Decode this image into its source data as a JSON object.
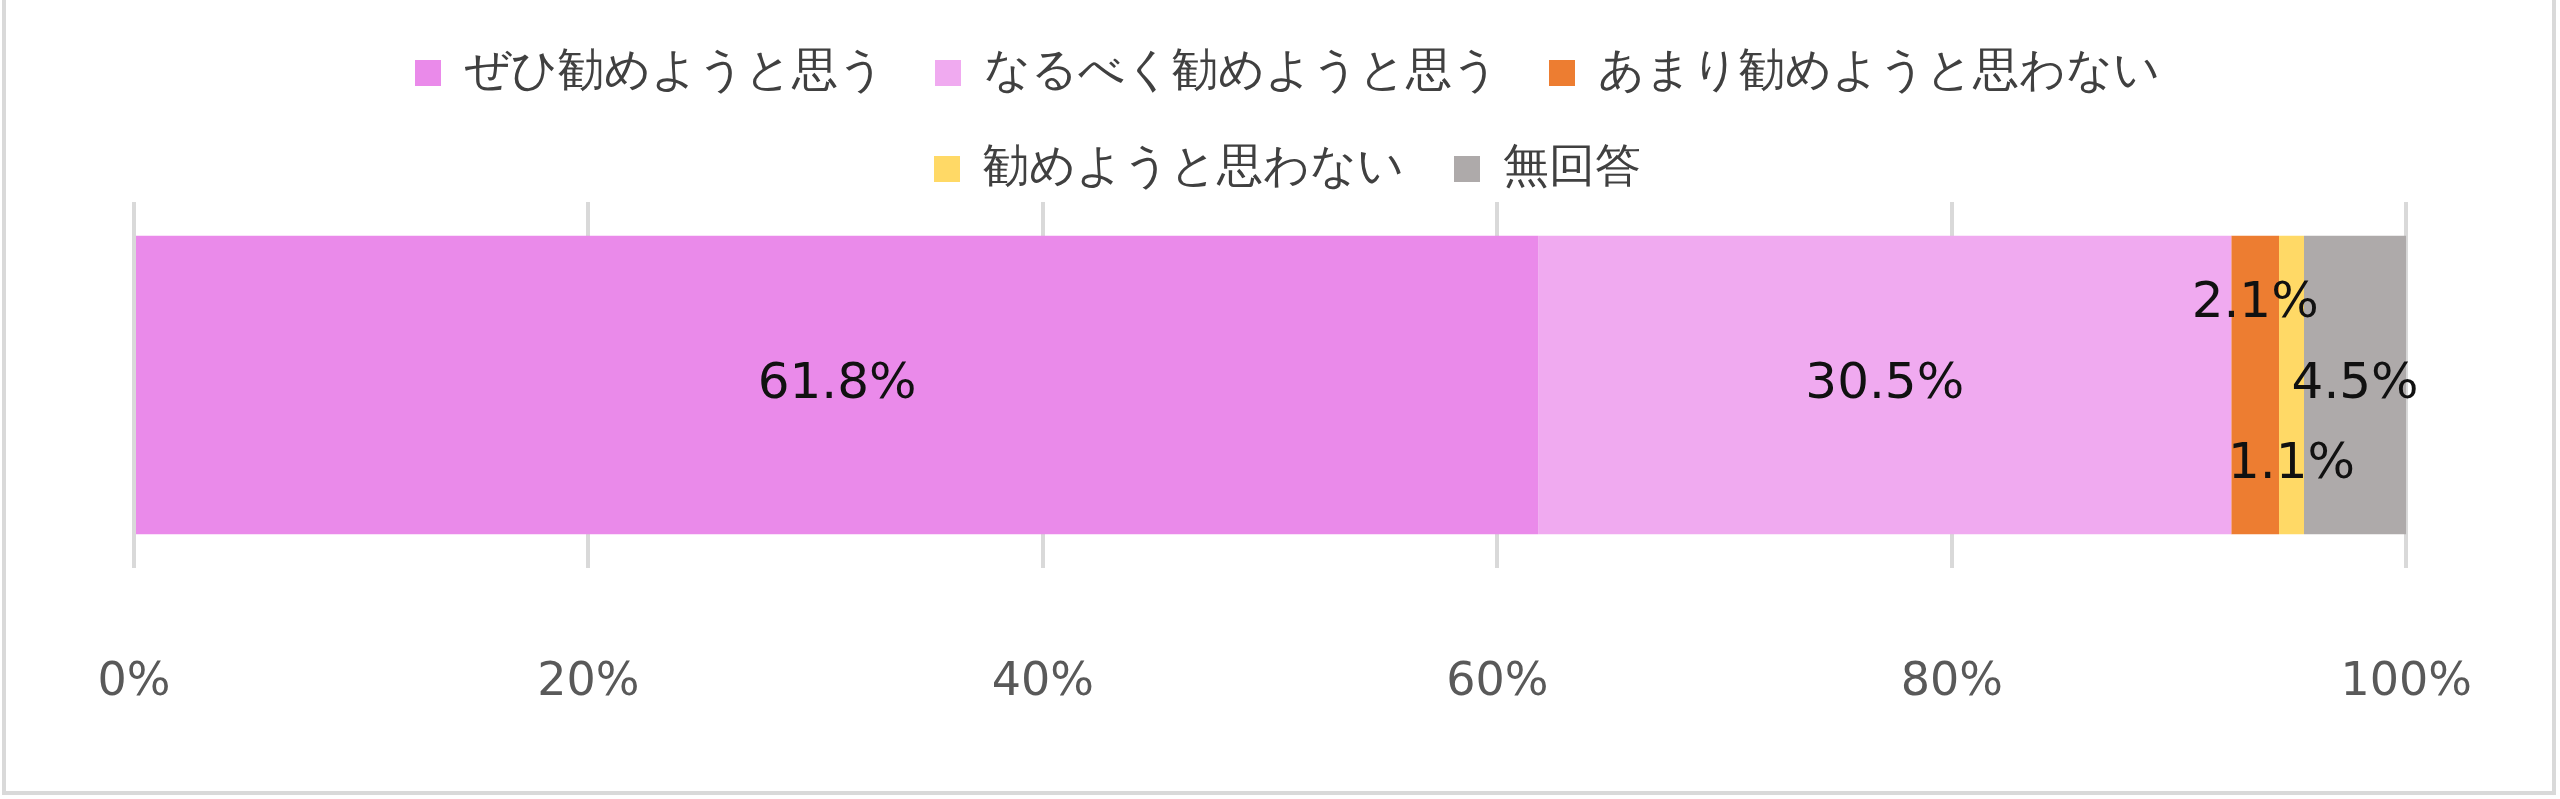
{
  "chart_data": {
    "type": "bar",
    "orientation": "horizontal",
    "stacked": true,
    "categories": [
      null
    ],
    "series": [
      {
        "name": "ぜひ勧めようと思う",
        "color": "#ea8aea",
        "values": [
          61.8
        ],
        "value_labels": [
          "61.8%"
        ]
      },
      {
        "name": "なるべく勧めようと思う",
        "color": "#f0aaf0",
        "values": [
          30.5
        ],
        "value_labels": [
          "30.5%"
        ]
      },
      {
        "name": "あまり勧めようと思わない",
        "color": "#ed7d31",
        "values": [
          2.1
        ],
        "value_labels": [
          "2.1%"
        ]
      },
      {
        "name": "勧めようと思わない",
        "color": "#ffd966",
        "values": [
          1.1
        ],
        "value_labels": [
          "1.1%"
        ]
      },
      {
        "name": "無回答",
        "color": "#aeaaaa",
        "values": [
          4.5
        ],
        "value_labels": [
          "4.5%"
        ]
      }
    ],
    "xlim": [
      0,
      100
    ],
    "xticks": [
      {
        "value": 0,
        "label": "0%"
      },
      {
        "value": 20,
        "label": "20%"
      },
      {
        "value": 40,
        "label": "40%"
      },
      {
        "value": 60,
        "label": "60%"
      },
      {
        "value": 80,
        "label": "80%"
      },
      {
        "value": 100,
        "label": "100%"
      }
    ],
    "grid": "x",
    "legend": "top",
    "tick_labels": "x"
  }
}
